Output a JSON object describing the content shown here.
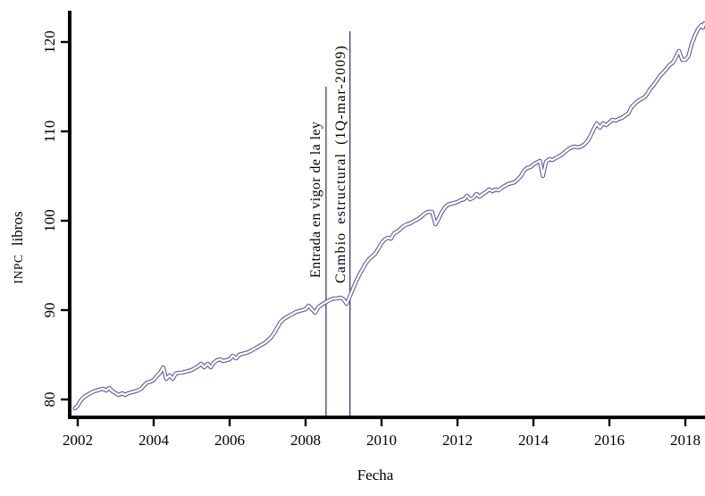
{
  "chart_data": {
    "type": "line",
    "title": "",
    "xlabel": "Fecha",
    "ylabel": "INPC libros",
    "ylabel_acronym": "INPC",
    "ylabel_rest": "libros",
    "xlim": [
      2001.79,
      2018.55
    ],
    "ylim": [
      78,
      123.5
    ],
    "x_ticks": [
      2002,
      2004,
      2006,
      2008,
      2010,
      2012,
      2014,
      2016,
      2018
    ],
    "y_ticks": [
      80,
      90,
      100,
      110,
      120
    ],
    "grid": false,
    "legend": "none",
    "line_style": "white core with slate-blue outline (tube line)",
    "colors": {
      "series_outline": "#5c5c96",
      "series_core": "#ffffff",
      "axis": "#000000",
      "reference_line": "#30305a"
    },
    "annotations": [
      {
        "label": "Entrada en vigor de la ley",
        "x": 2008.54
      },
      {
        "label": "Cambio estructural (1Q-mar-2009)",
        "x": 2009.17
      }
    ],
    "series": [
      {
        "name": "INPC libros",
        "points": [
          [
            2001.92,
            79.0
          ],
          [
            2002.0,
            79.3
          ],
          [
            2002.08,
            79.9
          ],
          [
            2002.17,
            80.3
          ],
          [
            2002.25,
            80.5
          ],
          [
            2002.33,
            80.7
          ],
          [
            2002.42,
            80.9
          ],
          [
            2002.5,
            81.0
          ],
          [
            2002.58,
            81.1
          ],
          [
            2002.67,
            81.2
          ],
          [
            2002.75,
            81.0
          ],
          [
            2002.83,
            81.3
          ],
          [
            2002.92,
            80.9
          ],
          [
            2003.0,
            80.7
          ],
          [
            2003.08,
            80.5
          ],
          [
            2003.17,
            80.7
          ],
          [
            2003.25,
            80.5
          ],
          [
            2003.33,
            80.7
          ],
          [
            2003.42,
            80.8
          ],
          [
            2003.5,
            80.9
          ],
          [
            2003.58,
            81.0
          ],
          [
            2003.67,
            81.2
          ],
          [
            2003.75,
            81.6
          ],
          [
            2003.83,
            81.9
          ],
          [
            2003.92,
            82.0
          ],
          [
            2004.0,
            82.2
          ],
          [
            2004.08,
            82.6
          ],
          [
            2004.17,
            83.0
          ],
          [
            2004.25,
            83.6
          ],
          [
            2004.33,
            82.3
          ],
          [
            2004.42,
            82.7
          ],
          [
            2004.5,
            82.3
          ],
          [
            2004.58,
            82.9
          ],
          [
            2004.67,
            83.0
          ],
          [
            2004.75,
            83.0
          ],
          [
            2004.83,
            83.1
          ],
          [
            2004.92,
            83.2
          ],
          [
            2005.0,
            83.3
          ],
          [
            2005.08,
            83.5
          ],
          [
            2005.17,
            83.7
          ],
          [
            2005.25,
            84.0
          ],
          [
            2005.33,
            83.6
          ],
          [
            2005.42,
            84.0
          ],
          [
            2005.5,
            83.6
          ],
          [
            2005.58,
            84.1
          ],
          [
            2005.67,
            84.4
          ],
          [
            2005.75,
            84.5
          ],
          [
            2005.83,
            84.3
          ],
          [
            2005.92,
            84.4
          ],
          [
            2006.0,
            84.5
          ],
          [
            2006.08,
            84.9
          ],
          [
            2006.17,
            84.6
          ],
          [
            2006.25,
            85.0
          ],
          [
            2006.33,
            85.1
          ],
          [
            2006.42,
            85.2
          ],
          [
            2006.5,
            85.3
          ],
          [
            2006.58,
            85.5
          ],
          [
            2006.67,
            85.7
          ],
          [
            2006.75,
            85.9
          ],
          [
            2006.83,
            86.1
          ],
          [
            2006.92,
            86.3
          ],
          [
            2007.0,
            86.6
          ],
          [
            2007.08,
            86.9
          ],
          [
            2007.17,
            87.4
          ],
          [
            2007.25,
            88.0
          ],
          [
            2007.33,
            88.6
          ],
          [
            2007.42,
            89.0
          ],
          [
            2007.5,
            89.2
          ],
          [
            2007.58,
            89.4
          ],
          [
            2007.67,
            89.6
          ],
          [
            2007.75,
            89.8
          ],
          [
            2007.83,
            89.9
          ],
          [
            2007.92,
            90.0
          ],
          [
            2008.0,
            90.1
          ],
          [
            2008.08,
            90.5
          ],
          [
            2008.17,
            90.1
          ],
          [
            2008.25,
            89.7
          ],
          [
            2008.33,
            90.3
          ],
          [
            2008.42,
            90.6
          ],
          [
            2008.5,
            90.8
          ],
          [
            2008.58,
            91.0
          ],
          [
            2008.67,
            91.2
          ],
          [
            2008.75,
            91.3
          ],
          [
            2008.83,
            91.3
          ],
          [
            2008.92,
            91.4
          ],
          [
            2009.0,
            91.2
          ],
          [
            2009.08,
            90.7
          ],
          [
            2009.17,
            91.6
          ],
          [
            2009.25,
            92.4
          ],
          [
            2009.33,
            93.2
          ],
          [
            2009.42,
            94.0
          ],
          [
            2009.5,
            94.6
          ],
          [
            2009.58,
            95.2
          ],
          [
            2009.67,
            95.7
          ],
          [
            2009.75,
            96.0
          ],
          [
            2009.83,
            96.3
          ],
          [
            2009.92,
            96.9
          ],
          [
            2010.0,
            97.5
          ],
          [
            2010.08,
            97.9
          ],
          [
            2010.17,
            98.1
          ],
          [
            2010.25,
            98.0
          ],
          [
            2010.33,
            98.6
          ],
          [
            2010.42,
            98.8
          ],
          [
            2010.5,
            99.1
          ],
          [
            2010.58,
            99.4
          ],
          [
            2010.67,
            99.6
          ],
          [
            2010.75,
            99.7
          ],
          [
            2010.83,
            99.9
          ],
          [
            2010.92,
            100.1
          ],
          [
            2011.0,
            100.3
          ],
          [
            2011.08,
            100.6
          ],
          [
            2011.17,
            100.9
          ],
          [
            2011.25,
            101.0
          ],
          [
            2011.33,
            101.0
          ],
          [
            2011.42,
            99.6
          ],
          [
            2011.5,
            100.2
          ],
          [
            2011.58,
            100.9
          ],
          [
            2011.67,
            101.5
          ],
          [
            2011.75,
            101.8
          ],
          [
            2011.83,
            101.9
          ],
          [
            2011.92,
            102.0
          ],
          [
            2012.0,
            102.1
          ],
          [
            2012.08,
            102.3
          ],
          [
            2012.17,
            102.4
          ],
          [
            2012.25,
            102.8
          ],
          [
            2012.33,
            102.4
          ],
          [
            2012.42,
            102.6
          ],
          [
            2012.5,
            103.0
          ],
          [
            2012.58,
            102.7
          ],
          [
            2012.67,
            103.0
          ],
          [
            2012.75,
            103.2
          ],
          [
            2012.83,
            103.5
          ],
          [
            2012.92,
            103.3
          ],
          [
            2013.0,
            103.5
          ],
          [
            2013.08,
            103.4
          ],
          [
            2013.17,
            103.7
          ],
          [
            2013.25,
            103.9
          ],
          [
            2013.33,
            104.1
          ],
          [
            2013.42,
            104.2
          ],
          [
            2013.5,
            104.3
          ],
          [
            2013.58,
            104.6
          ],
          [
            2013.67,
            105.0
          ],
          [
            2013.75,
            105.6
          ],
          [
            2013.83,
            105.9
          ],
          [
            2013.92,
            106.0
          ],
          [
            2014.0,
            106.3
          ],
          [
            2014.08,
            106.5
          ],
          [
            2014.17,
            106.7
          ],
          [
            2014.25,
            105.0
          ],
          [
            2014.33,
            106.6
          ],
          [
            2014.42,
            106.9
          ],
          [
            2014.5,
            106.8
          ],
          [
            2014.58,
            107.0
          ],
          [
            2014.67,
            107.2
          ],
          [
            2014.75,
            107.4
          ],
          [
            2014.83,
            107.7
          ],
          [
            2014.92,
            108.0
          ],
          [
            2015.0,
            108.2
          ],
          [
            2015.08,
            108.3
          ],
          [
            2015.17,
            108.2
          ],
          [
            2015.25,
            108.3
          ],
          [
            2015.33,
            108.5
          ],
          [
            2015.42,
            108.9
          ],
          [
            2015.5,
            109.5
          ],
          [
            2015.58,
            110.2
          ],
          [
            2015.67,
            110.9
          ],
          [
            2015.75,
            110.4
          ],
          [
            2015.83,
            110.9
          ],
          [
            2015.92,
            110.7
          ],
          [
            2016.0,
            111.0
          ],
          [
            2016.08,
            111.3
          ],
          [
            2016.17,
            111.2
          ],
          [
            2016.25,
            111.4
          ],
          [
            2016.33,
            111.5
          ],
          [
            2016.42,
            111.8
          ],
          [
            2016.5,
            112.0
          ],
          [
            2016.58,
            112.7
          ],
          [
            2016.67,
            113.1
          ],
          [
            2016.75,
            113.4
          ],
          [
            2016.83,
            113.6
          ],
          [
            2016.92,
            113.8
          ],
          [
            2017.0,
            114.2
          ],
          [
            2017.08,
            114.8
          ],
          [
            2017.17,
            115.2
          ],
          [
            2017.25,
            115.7
          ],
          [
            2017.33,
            116.2
          ],
          [
            2017.42,
            116.6
          ],
          [
            2017.5,
            117.0
          ],
          [
            2017.58,
            117.4
          ],
          [
            2017.67,
            117.7
          ],
          [
            2017.75,
            118.3
          ],
          [
            2017.83,
            119.0
          ],
          [
            2017.92,
            118.0
          ],
          [
            2018.0,
            118.0
          ],
          [
            2018.08,
            118.4
          ],
          [
            2018.17,
            119.8
          ],
          [
            2018.25,
            120.7
          ],
          [
            2018.33,
            121.4
          ],
          [
            2018.42,
            121.9
          ],
          [
            2018.46,
            121.6
          ],
          [
            2018.5,
            122.1
          ]
        ]
      }
    ]
  }
}
